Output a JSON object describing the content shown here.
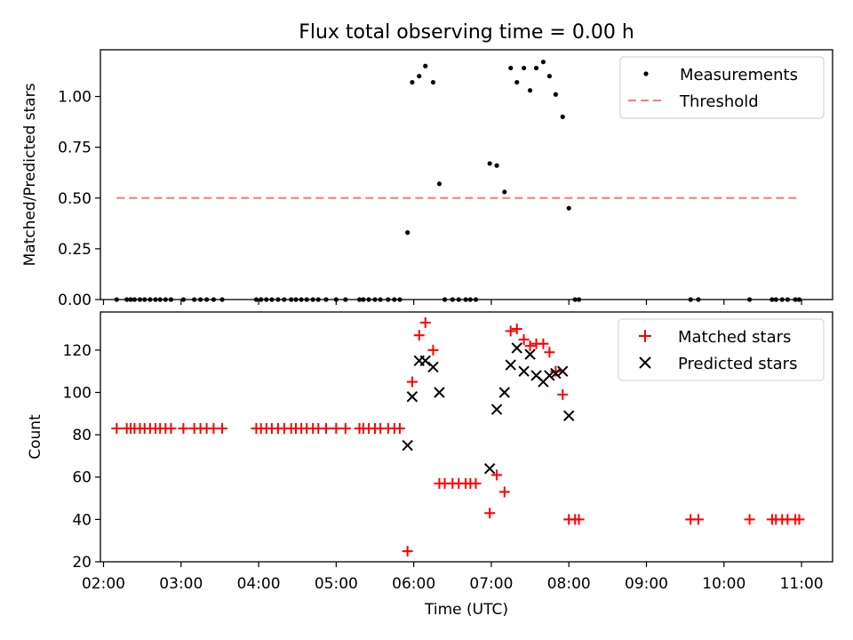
{
  "title": "Flux total observing time = 0.00 h",
  "colors": {
    "measurement": "#000000",
    "threshold": "#ff7777",
    "matched": "#ff0000",
    "predicted": "#000000"
  },
  "chart_data": [
    {
      "type": "scatter",
      "ylabel": "Matched/Predicted stars",
      "ylim": [
        0,
        1.23
      ],
      "yticks": [
        "0.00",
        "0.25",
        "0.50",
        "0.75",
        "1.00"
      ],
      "ytick_values": [
        0,
        0.25,
        0.5,
        0.75,
        1.0
      ],
      "legend_position": "upper-right",
      "legend": {
        "measurements": "Measurements",
        "threshold": "Threshold"
      },
      "threshold": {
        "y": 0.5,
        "x_start": 2.17,
        "x_end": 10.97
      },
      "measurements": {
        "x": [
          2.17,
          2.3,
          2.35,
          2.4,
          2.47,
          2.53,
          2.6,
          2.67,
          2.73,
          2.8,
          2.87,
          3.03,
          3.17,
          3.25,
          3.33,
          3.42,
          3.53,
          3.97,
          4.03,
          4.1,
          4.17,
          4.25,
          4.33,
          4.42,
          4.48,
          4.55,
          4.62,
          4.7,
          4.77,
          4.87,
          5.0,
          5.12,
          5.3,
          5.35,
          5.42,
          5.5,
          5.57,
          5.67,
          5.75,
          5.82,
          5.92,
          5.98,
          6.07,
          6.15,
          6.25,
          6.33,
          6.4,
          6.5,
          6.58,
          6.67,
          6.73,
          6.8,
          6.98,
          7.07,
          7.17,
          7.25,
          7.33,
          7.42,
          7.5,
          7.58,
          7.67,
          7.75,
          7.83,
          7.92,
          8.0,
          8.08,
          8.13,
          9.57,
          9.67,
          10.33,
          10.62,
          10.67,
          10.75,
          10.82,
          10.92,
          10.97
        ],
        "y": [
          0,
          0,
          0,
          0,
          0,
          0,
          0,
          0,
          0,
          0,
          0,
          0,
          0,
          0,
          0,
          0,
          0,
          0,
          0,
          0,
          0,
          0,
          0,
          0,
          0,
          0,
          0,
          0,
          0,
          0,
          0,
          0,
          0,
          0,
          0,
          0,
          0,
          0,
          0,
          0,
          0.33,
          1.07,
          1.1,
          1.15,
          1.07,
          0.57,
          0,
          0,
          0,
          0,
          0,
          0,
          0.67,
          0.66,
          0.53,
          1.14,
          1.07,
          1.14,
          1.03,
          1.14,
          1.17,
          1.1,
          1.01,
          0.9,
          0.45,
          0,
          0,
          0,
          0,
          0,
          0,
          0,
          0,
          0,
          0,
          0
        ]
      }
    },
    {
      "type": "scatter",
      "ylabel": "Count",
      "xlabel": "Time (UTC)",
      "ylim": [
        20,
        138
      ],
      "xlim": [
        1.96,
        11.4
      ],
      "yticks": [
        "20",
        "40",
        "60",
        "80",
        "100",
        "120"
      ],
      "ytick_values": [
        20,
        40,
        60,
        80,
        100,
        120
      ],
      "xticks": [
        "02:00",
        "03:00",
        "04:00",
        "05:00",
        "06:00",
        "07:00",
        "08:00",
        "09:00",
        "10:00",
        "11:00"
      ],
      "xtick_values": [
        2,
        3,
        4,
        5,
        6,
        7,
        8,
        9,
        10,
        11
      ],
      "legend_position": "upper-right",
      "legend": {
        "matched": "Matched stars",
        "predicted": "Predicted stars"
      },
      "matched": {
        "x": [
          2.17,
          2.3,
          2.35,
          2.4,
          2.47,
          2.53,
          2.6,
          2.67,
          2.73,
          2.8,
          2.87,
          3.03,
          3.17,
          3.25,
          3.33,
          3.42,
          3.53,
          3.97,
          4.03,
          4.1,
          4.17,
          4.25,
          4.33,
          4.42,
          4.48,
          4.55,
          4.62,
          4.7,
          4.77,
          4.87,
          5.0,
          5.12,
          5.3,
          5.35,
          5.42,
          5.5,
          5.57,
          5.67,
          5.75,
          5.82,
          5.92,
          5.98,
          6.07,
          6.15,
          6.25,
          6.33,
          6.4,
          6.5,
          6.58,
          6.67,
          6.73,
          6.8,
          6.98,
          7.07,
          7.17,
          7.25,
          7.33,
          7.42,
          7.5,
          7.58,
          7.67,
          7.75,
          7.83,
          7.92,
          8.0,
          8.08,
          8.13,
          9.57,
          9.67,
          10.33,
          10.62,
          10.67,
          10.75,
          10.82,
          10.92,
          10.97
        ],
        "y": [
          83,
          83,
          83,
          83,
          83,
          83,
          83,
          83,
          83,
          83,
          83,
          83,
          83,
          83,
          83,
          83,
          83,
          83,
          83,
          83,
          83,
          83,
          83,
          83,
          83,
          83,
          83,
          83,
          83,
          83,
          83,
          83,
          83,
          83,
          83,
          83,
          83,
          83,
          83,
          83,
          25,
          105,
          127,
          133,
          120,
          57,
          57,
          57,
          57,
          57,
          57,
          57,
          43,
          61,
          53,
          129,
          130,
          125,
          122,
          123,
          123,
          119,
          110,
          99,
          40,
          40,
          40,
          40,
          40,
          40,
          40,
          40,
          40,
          40,
          40,
          40
        ]
      },
      "predicted": {
        "x": [
          5.92,
          5.98,
          6.07,
          6.15,
          6.25,
          6.33,
          6.98,
          7.07,
          7.17,
          7.25,
          7.33,
          7.42,
          7.5,
          7.58,
          7.67,
          7.75,
          7.83,
          7.92,
          8.0
        ],
        "y": [
          75,
          98,
          115,
          115,
          112,
          100,
          64,
          92,
          100,
          113,
          121,
          110,
          118,
          108,
          105,
          108,
          109,
          110,
          89
        ]
      }
    }
  ]
}
